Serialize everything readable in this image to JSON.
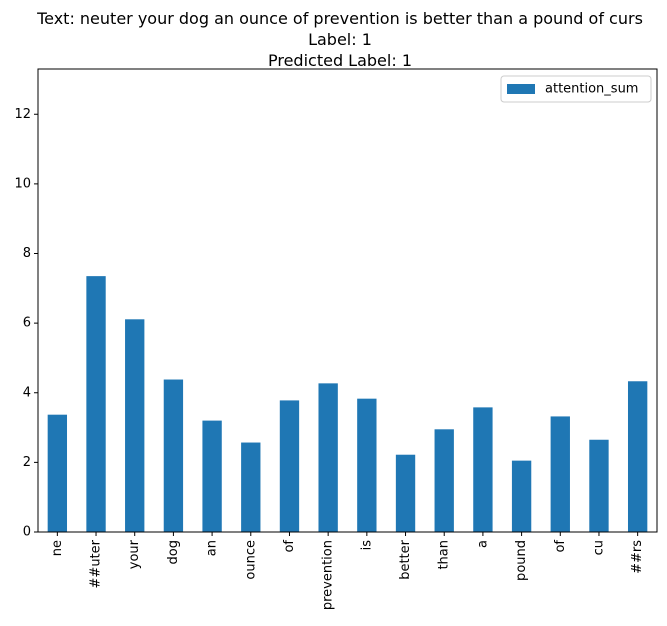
{
  "chart_data": {
    "type": "bar",
    "title_lines": [
      "Text: neuter your dog an ounce of prevention is better than a pound of curs",
      "Label: 1",
      "Predicted Label: 1"
    ],
    "xlabel": "",
    "ylabel": "",
    "categories": [
      "ne",
      "##uter",
      "your",
      "dog",
      "an",
      "ounce",
      "of",
      "prevention",
      "is",
      "better",
      "than",
      "a",
      "pound",
      "of",
      "cu",
      "##rs"
    ],
    "series": [
      {
        "name": "attention_sum",
        "color": "#1f77b4",
        "values": [
          3.37,
          7.35,
          6.11,
          4.38,
          3.2,
          2.57,
          3.78,
          4.27,
          3.83,
          2.22,
          2.95,
          3.58,
          2.05,
          3.32,
          2.65,
          4.33
        ]
      }
    ],
    "ylim": [
      0,
      13.3
    ],
    "yticks": [
      0,
      2,
      4,
      6,
      8,
      10,
      12
    ],
    "grid": false,
    "legend_position": "upper right"
  }
}
